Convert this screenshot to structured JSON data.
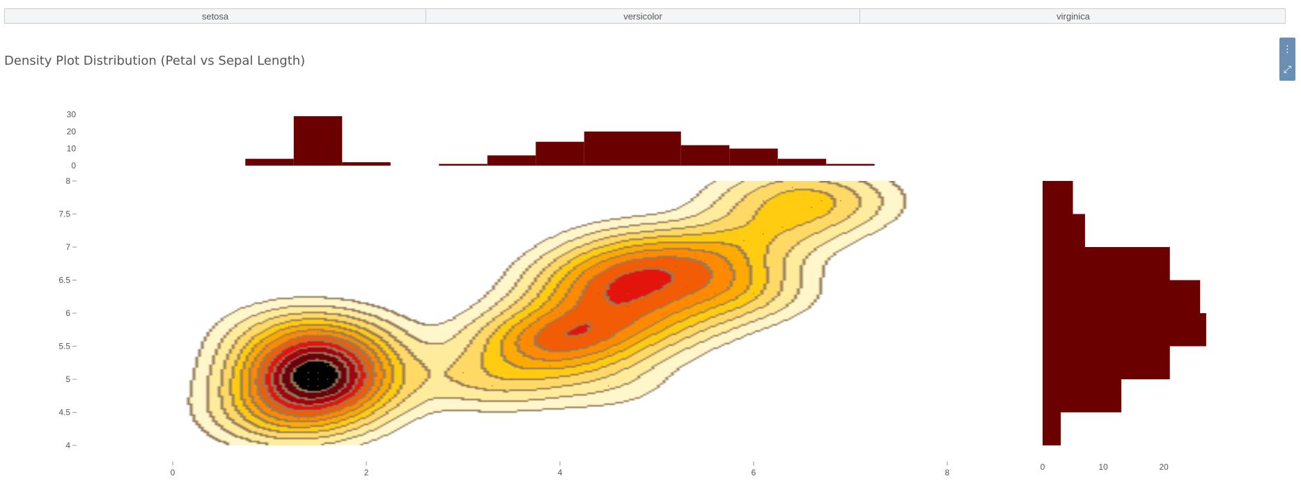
{
  "tabs": [
    {
      "label": "setosa"
    },
    {
      "label": "versicolor"
    },
    {
      "label": "virginica"
    }
  ],
  "title": "Density Plot Distribution (Petal vs Sepal Length)",
  "toolbar": {
    "menu_icon": "more-vertical-icon",
    "expand_icon": "expand-icon"
  },
  "chart_data": {
    "type": "density_contour_with_marginal_histograms",
    "x": {
      "ticks": [
        0,
        2,
        4,
        6,
        8
      ],
      "range": [
        -0.75,
        8.5
      ]
    },
    "y": {
      "ticks": [
        4,
        4.5,
        5,
        5.5,
        6,
        6.5,
        7,
        7.5,
        8
      ],
      "range": [
        4,
        8
      ]
    },
    "colors": [
      "#fff6cc",
      "#ffeb9c",
      "#ffd966",
      "#ffcc11",
      "#ffaa00",
      "#ff8a00",
      "#f25c05",
      "#e3140b",
      "#a4000f",
      "#6b000d",
      "#000000"
    ],
    "histogram_color": "#6b0000",
    "peaks": [
      {
        "cx": 1.0,
        "cy": 5.2,
        "levels": 7
      },
      {
        "cx": 5.0,
        "cy": 6.3,
        "levels": 11
      },
      {
        "cx": 7.0,
        "cy": 7.65,
        "levels": 2
      }
    ],
    "x_histogram": {
      "ticks": [
        0,
        10,
        20,
        30
      ],
      "bins": [
        {
          "x0": 0.75,
          "x1": 1.25,
          "count": 4
        },
        {
          "x0": 1.25,
          "x1": 1.75,
          "count": 29
        },
        {
          "x0": 1.75,
          "x1": 2.25,
          "count": 2
        },
        {
          "x0": 2.75,
          "x1": 3.25,
          "count": 1
        },
        {
          "x0": 3.25,
          "x1": 3.75,
          "count": 6
        },
        {
          "x0": 3.75,
          "x1": 4.25,
          "count": 14
        },
        {
          "x0": 4.25,
          "x1": 5.25,
          "count": 20
        },
        {
          "x0": 5.25,
          "x1": 5.75,
          "count": 12
        },
        {
          "x0": 5.75,
          "x1": 6.25,
          "count": 10
        },
        {
          "x0": 6.25,
          "x1": 6.75,
          "count": 4
        },
        {
          "x0": 6.75,
          "x1": 7.25,
          "count": 1
        }
      ]
    },
    "y_histogram": {
      "ticks": [
        0,
        10,
        20
      ],
      "bins": [
        {
          "y0": 4.0,
          "y1": 4.5,
          "count": 3
        },
        {
          "y0": 4.5,
          "y1": 5.0,
          "count": 13
        },
        {
          "y0": 5.0,
          "y1": 5.5,
          "count": 21
        },
        {
          "y0": 5.5,
          "y1": 6.0,
          "count": 27
        },
        {
          "y0": 6.0,
          "y1": 6.5,
          "count": 26
        },
        {
          "y0": 6.5,
          "y1": 7.0,
          "count": 21
        },
        {
          "y0": 7.0,
          "y1": 7.5,
          "count": 7
        },
        {
          "y0": 7.5,
          "y1": 8.0,
          "count": 5
        }
      ]
    },
    "points": [
      [
        1.4,
        5.1
      ],
      [
        1.4,
        4.9
      ],
      [
        1.3,
        4.7
      ],
      [
        1.5,
        4.6
      ],
      [
        1.4,
        5.0
      ],
      [
        1.7,
        5.4
      ],
      [
        1.4,
        4.6
      ],
      [
        1.5,
        5.0
      ],
      [
        1.4,
        4.4
      ],
      [
        1.5,
        4.9
      ],
      [
        1.5,
        5.4
      ],
      [
        1.6,
        4.8
      ],
      [
        1.1,
        4.3
      ],
      [
        1.2,
        5.8
      ],
      [
        1.5,
        5.7
      ],
      [
        1.3,
        5.4
      ],
      [
        1.4,
        5.1
      ],
      [
        1.7,
        5.7
      ],
      [
        1.5,
        5.1
      ],
      [
        1.7,
        5.4
      ],
      [
        1.0,
        4.6
      ],
      [
        1.9,
        4.8
      ],
      [
        1.6,
        5.0
      ],
      [
        1.6,
        5.2
      ],
      [
        1.3,
        5.5
      ],
      [
        1.3,
        4.4
      ],
      [
        1.5,
        5.3
      ],
      [
        1.4,
        5.0
      ],
      [
        4.7,
        7.0
      ],
      [
        4.5,
        6.4
      ],
      [
        4.9,
        6.9
      ],
      [
        4.0,
        5.5
      ],
      [
        4.6,
        6.5
      ],
      [
        4.5,
        5.7
      ],
      [
        4.7,
        6.3
      ],
      [
        3.3,
        4.9
      ],
      [
        4.6,
        6.6
      ],
      [
        3.9,
        5.2
      ],
      [
        3.5,
        5.0
      ],
      [
        4.2,
        5.9
      ],
      [
        4.0,
        6.0
      ],
      [
        4.7,
        6.1
      ],
      [
        3.6,
        5.6
      ],
      [
        4.4,
        6.7
      ],
      [
        4.1,
        5.8
      ],
      [
        4.8,
        5.9
      ],
      [
        4.3,
        6.4
      ],
      [
        5.0,
        6.7
      ],
      [
        3.8,
        5.5
      ],
      [
        3.7,
        5.5
      ],
      [
        5.1,
        6.0
      ],
      [
        4.5,
        5.4
      ],
      [
        4.4,
        6.3
      ],
      [
        3.0,
        5.1
      ],
      [
        4.1,
        5.7
      ],
      [
        4.2,
        5.6
      ],
      [
        6.0,
        6.3
      ],
      [
        5.1,
        5.8
      ],
      [
        5.9,
        7.1
      ],
      [
        5.6,
        6.3
      ],
      [
        5.8,
        6.5
      ],
      [
        6.6,
        7.6
      ],
      [
        4.5,
        4.9
      ],
      [
        6.3,
        7.3
      ],
      [
        6.1,
        7.2
      ],
      [
        5.3,
        6.4
      ],
      [
        5.5,
        6.8
      ],
      [
        6.7,
        7.7
      ],
      [
        6.9,
        7.7
      ],
      [
        5.7,
        6.7
      ],
      [
        6.4,
        7.9
      ],
      [
        6.1,
        7.7
      ],
      [
        5.6,
        6.2
      ],
      [
        5.4,
        6.9
      ],
      [
        5.2,
        6.7
      ]
    ]
  }
}
